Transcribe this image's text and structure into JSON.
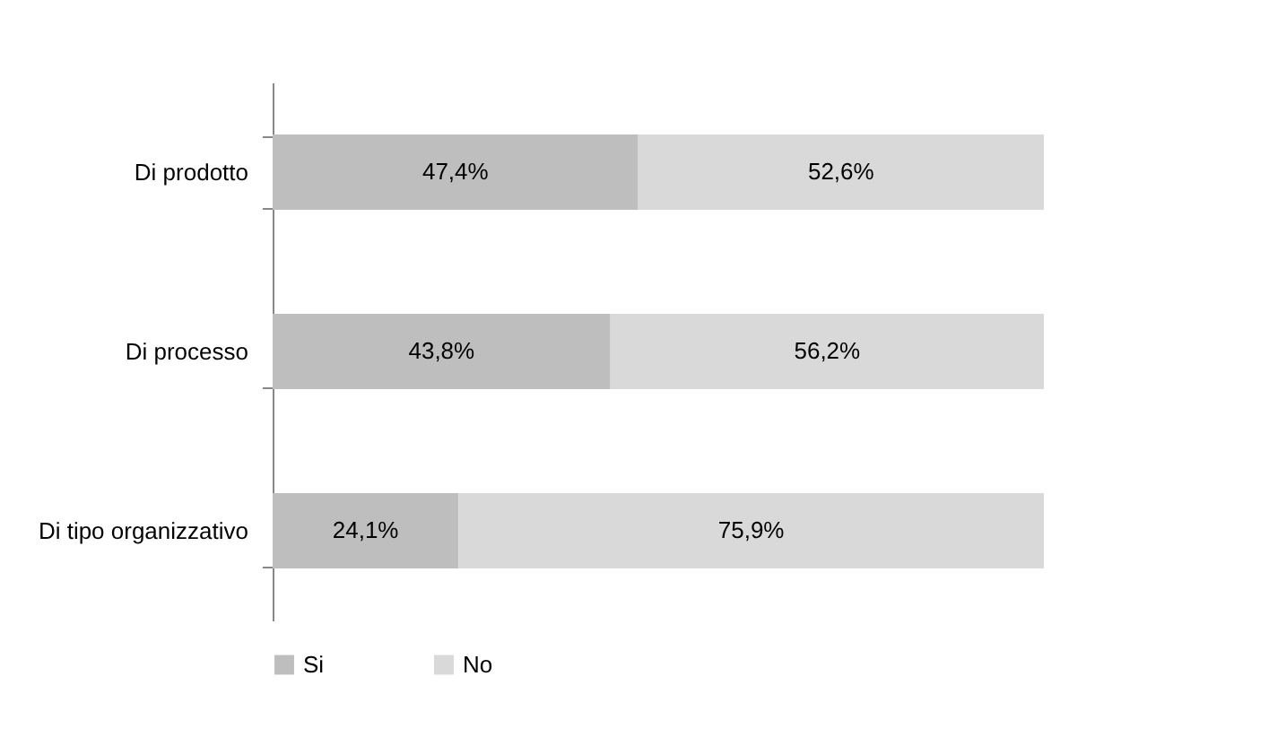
{
  "chart_data": {
    "type": "bar",
    "orientation": "horizontal",
    "stacked": true,
    "categories": [
      "Di prodotto",
      "Di processo",
      "Di tipo organizzativo"
    ],
    "series": [
      {
        "name": "Si",
        "color": "#bebebe",
        "values": [
          47.4,
          43.8,
          24.1
        ],
        "value_labels": [
          "47,4%",
          "43,8%",
          "24,1%"
        ]
      },
      {
        "name": "No",
        "color": "#d9d9d9",
        "values": [
          52.6,
          56.2,
          75.9
        ],
        "value_labels": [
          "52,6%",
          "56,2%",
          "75,9%"
        ]
      }
    ],
    "xlim": [
      0,
      100
    ],
    "tick_labels": "y",
    "grid": false,
    "legend": "bottom"
  }
}
